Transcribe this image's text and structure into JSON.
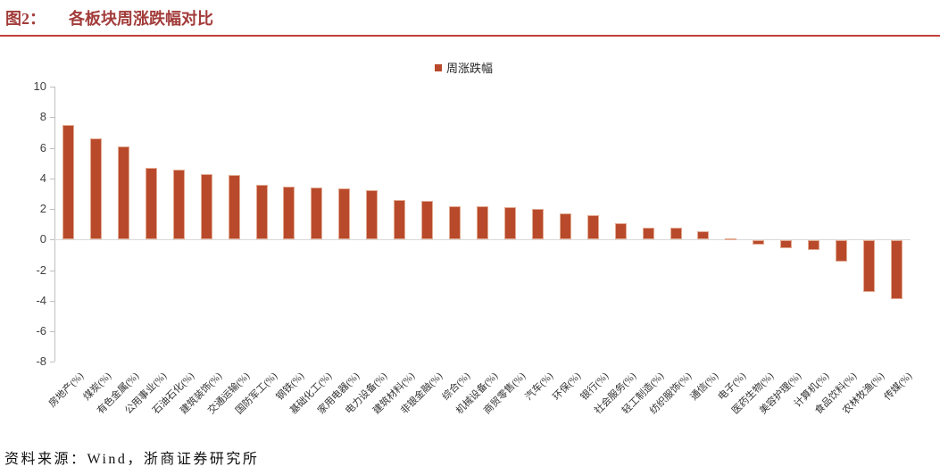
{
  "header": {
    "figure_label": "图2：",
    "title": "各板块周涨跌幅对比"
  },
  "footer": {
    "source": "资料来源：Wind，浙商证券研究所"
  },
  "colors": {
    "bar": "#B84A2B",
    "bar_edge": "#E3AB93",
    "title_red": "#A23C3A",
    "rule_red": "#C5413D",
    "axis_gray": "#BFBFBF",
    "zero_line_gray": "#D9D9D9",
    "tick_text": "#404040"
  },
  "chart_data": {
    "type": "bar",
    "title": "各板块周涨跌幅对比",
    "legend_position": "top-center",
    "grid": false,
    "xlabel": "",
    "ylabel": "",
    "ylim": [
      -8,
      10
    ],
    "yticks": [
      10,
      8,
      6,
      4,
      2,
      0,
      -2,
      -4,
      -6,
      -8
    ],
    "categories": [
      "房地产(%)",
      "煤炭(%)",
      "有色金属(%)",
      "公用事业(%)",
      "石油石化(%)",
      "建筑装饰(%)",
      "交通运输(%)",
      "国防军工(%)",
      "钢铁(%)",
      "基础化工(%)",
      "家用电器(%)",
      "电力设备(%)",
      "建筑材料(%)",
      "非银金融(%)",
      "综合(%)",
      "机械设备(%)",
      "商贸零售(%)",
      "汽车(%)",
      "环保(%)",
      "银行(%)",
      "社会服务(%)",
      "轻工制造(%)",
      "纺织服饰(%)",
      "通信(%)",
      "电子(%)",
      "医药生物(%)",
      "美容护理(%)",
      "计算机(%)",
      "食品饮料(%)",
      "农林牧渔(%)",
      "传媒(%)"
    ],
    "series": [
      {
        "name": "周涨跌幅",
        "values": [
          7.5,
          6.6,
          6.1,
          4.7,
          4.6,
          4.3,
          4.2,
          3.55,
          3.45,
          3.4,
          3.35,
          3.2,
          2.6,
          2.55,
          2.2,
          2.15,
          2.1,
          2.0,
          1.7,
          1.6,
          1.05,
          0.8,
          0.8,
          0.55,
          0.1,
          -0.3,
          -0.5,
          -0.65,
          -1.4,
          -3.35,
          -3.85
        ]
      }
    ]
  }
}
